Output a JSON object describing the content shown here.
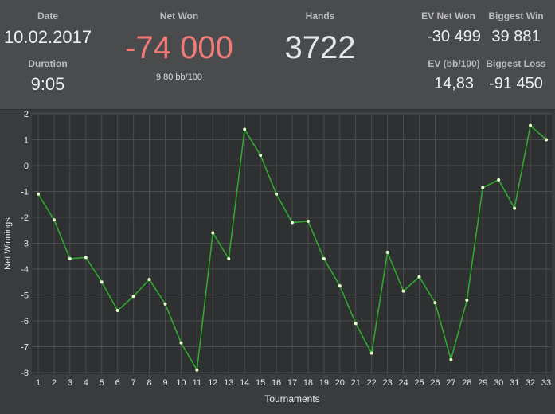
{
  "stats": {
    "date_label": "Date",
    "date_value": "10.02.2017",
    "duration_label": "Duration",
    "duration_value": "9:05",
    "net_won_label": "Net Won",
    "net_won_value": "-74 000",
    "net_won_sub": "9,80 bb/100",
    "hands_label": "Hands",
    "hands_value": "3722",
    "ev_net_won_label": "EV Net Won",
    "ev_net_won_value": "-30 499",
    "biggest_win_label": "Biggest Win",
    "biggest_win_value": "39 881",
    "ev_bb100_label": "EV (bb/100)",
    "ev_bb100_value": "14,83",
    "biggest_loss_label": "Biggest Loss",
    "biggest_loss_value": "-91 450"
  },
  "colors": {
    "net_won": "#f07b78",
    "line": "#2fa82f",
    "marker": "#e8ffd0",
    "plot_bg": "#2f3032",
    "grid": "#4a4c4f"
  },
  "chart_data": {
    "type": "line",
    "xlabel": "Tournaments",
    "ylabel": "Net Winnings",
    "x": [
      1,
      2,
      3,
      4,
      5,
      6,
      7,
      8,
      9,
      10,
      11,
      12,
      13,
      14,
      15,
      16,
      17,
      18,
      19,
      20,
      21,
      22,
      23,
      24,
      25,
      26,
      27,
      28,
      29,
      30,
      31,
      32,
      33
    ],
    "series": [
      {
        "values": [
          -1.1,
          -2.1,
          -3.6,
          -3.55,
          -4.5,
          -5.6,
          -5.05,
          -4.4,
          -5.35,
          -6.85,
          -7.9,
          -2.6,
          -3.6,
          1.4,
          0.4,
          -1.1,
          -2.2,
          -2.15,
          -3.6,
          -4.65,
          -6.1,
          -7.25,
          -3.35,
          -4.85,
          -4.3,
          -5.3,
          -7.5,
          -5.2,
          -0.85,
          -0.55,
          -1.65,
          1.55,
          1.0
        ]
      }
    ],
    "xlim": [
      1,
      33
    ],
    "ylim": [
      -8,
      2
    ],
    "yticks": [
      2,
      1,
      0,
      -1,
      -2,
      -3,
      -4,
      -5,
      -6,
      -7,
      -8
    ],
    "grid": true
  }
}
